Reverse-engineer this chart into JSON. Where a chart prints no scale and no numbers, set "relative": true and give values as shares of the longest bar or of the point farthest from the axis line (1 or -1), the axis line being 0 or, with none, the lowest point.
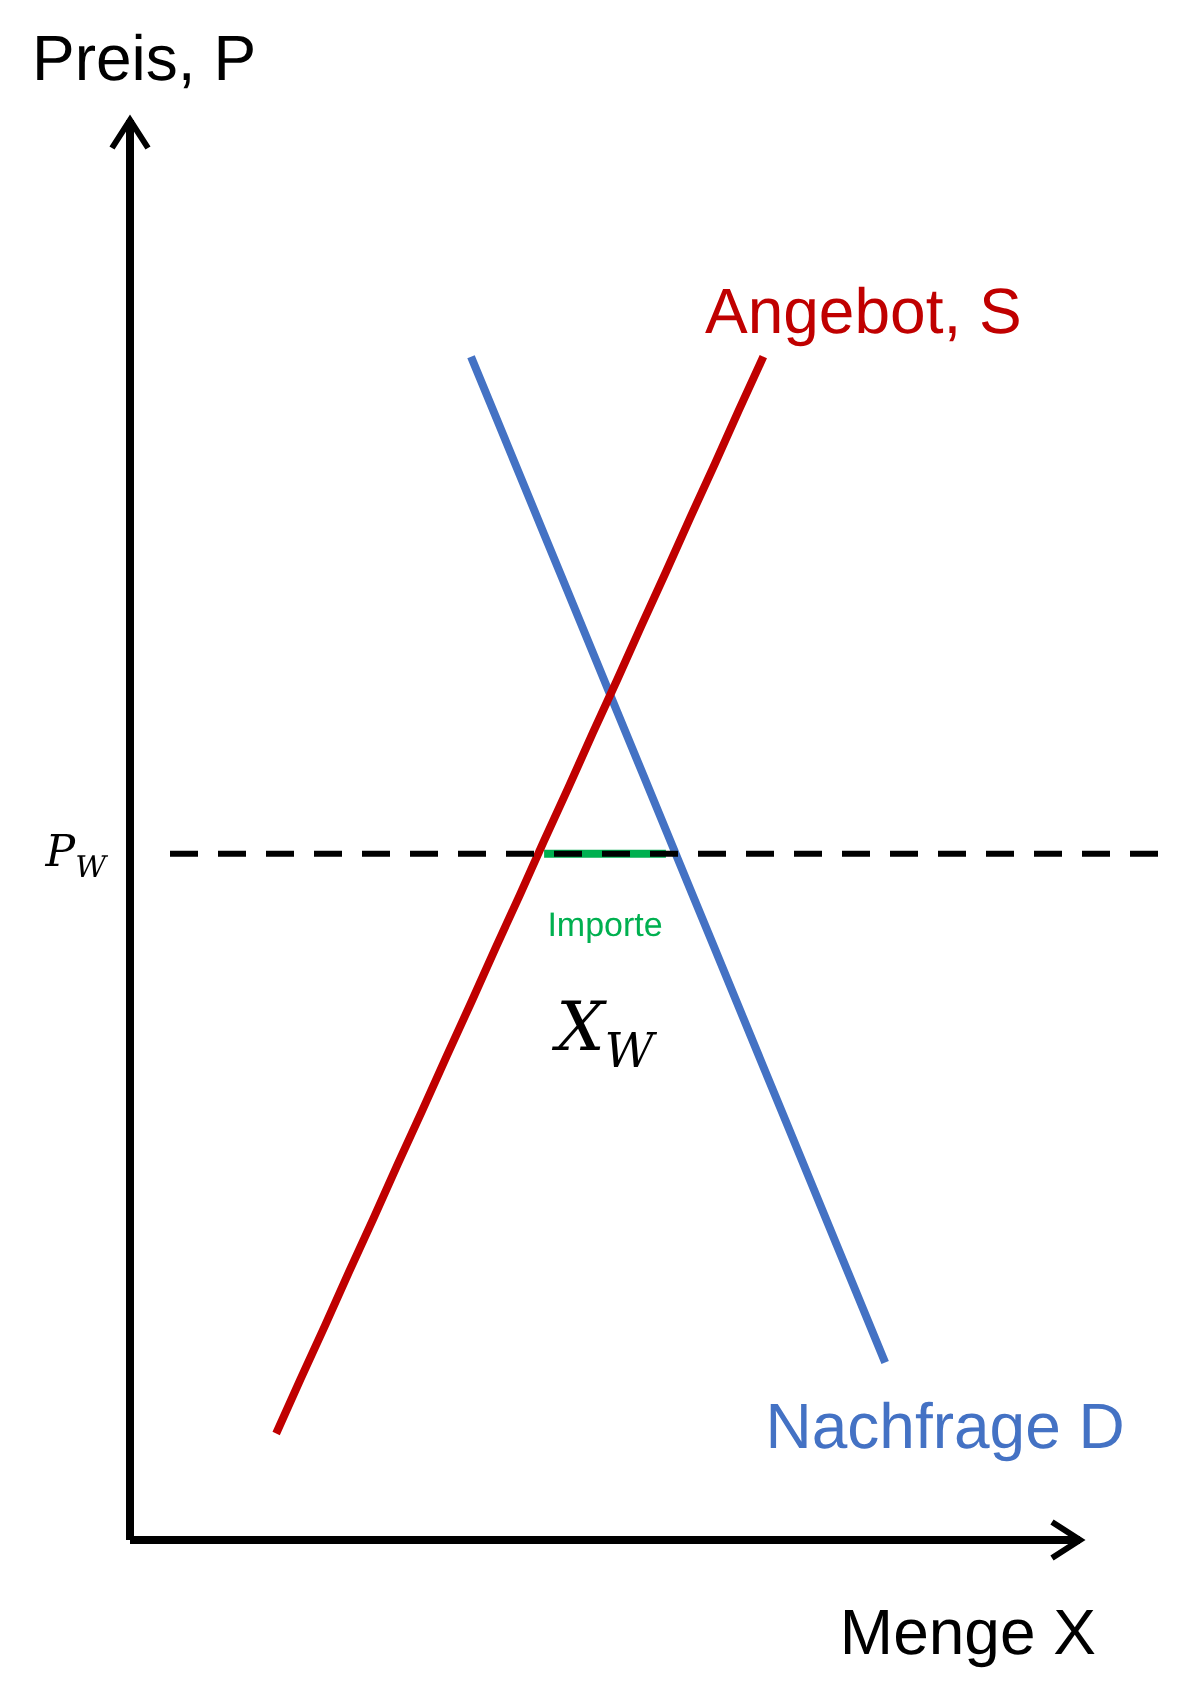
{
  "chart_data": {
    "type": "line",
    "relative": true,
    "xlabel": "Menge X",
    "ylabel": "Preis, P",
    "legend": false,
    "marker": "none",
    "categories": [
      null,
      null,
      null,
      null,
      null,
      null,
      null,
      null,
      null,
      null,
      null,
      null,
      null,
      null,
      null,
      null,
      null,
      null,
      null,
      null,
      null,
      null,
      null,
      null,
      null,
      null,
      null,
      null,
      null,
      null,
      null,
      null,
      null,
      null,
      null,
      null,
      null,
      null,
      null,
      null
    ],
    "series": [
      {
        "name": "Angebot, S",
        "color": "#c00000",
        "values": [
          null,
          null,
          null,
          null,
          null,
          null,
          0.09,
          0.136,
          0.181,
          0.227,
          0.272,
          0.318,
          0.363,
          0.409,
          0.454,
          0.5,
          0.545,
          0.591,
          0.636,
          0.682,
          0.727,
          0.773,
          0.818,
          0.864,
          0.909,
          0.955,
          1,
          null,
          null,
          null,
          null,
          null,
          null,
          null,
          null,
          null,
          null,
          null,
          null,
          null
        ]
      },
      {
        "name": "Nachfrage D",
        "color": "#4472c4",
        "values": [
          null,
          null,
          null,
          null,
          null,
          null,
          null,
          null,
          null,
          null,
          null,
          null,
          null,
          null,
          1,
          0.95,
          0.9,
          0.85,
          0.8,
          0.75,
          0.7,
          0.65,
          0.6,
          0.55,
          0.5,
          0.45,
          0.4,
          0.35,
          0.3,
          0.25,
          0.2,
          0.15,
          null,
          null,
          null,
          null,
          null,
          null,
          null,
          null
        ]
      },
      {
        "name": "Importe",
        "color": "#00b050",
        "values": [
          null,
          null,
          null,
          null,
          null,
          null,
          null,
          null,
          null,
          null,
          null,
          null,
          null,
          null,
          null,
          null,
          null,
          0.58,
          0.58,
          0.58,
          0.58,
          0.58,
          0.58,
          null,
          null,
          null,
          null,
          null,
          null,
          null,
          null,
          null,
          null,
          null,
          null,
          null,
          null,
          null,
          null,
          null
        ]
      }
    ],
    "ref_lines": [
      {
        "axis": "y",
        "value": 0.58,
        "label": "P$_{W}$",
        "color": "#000000",
        "line_style": "dashed"
      }
    ],
    "annotations": [
      "X$_{W}$"
    ]
  }
}
